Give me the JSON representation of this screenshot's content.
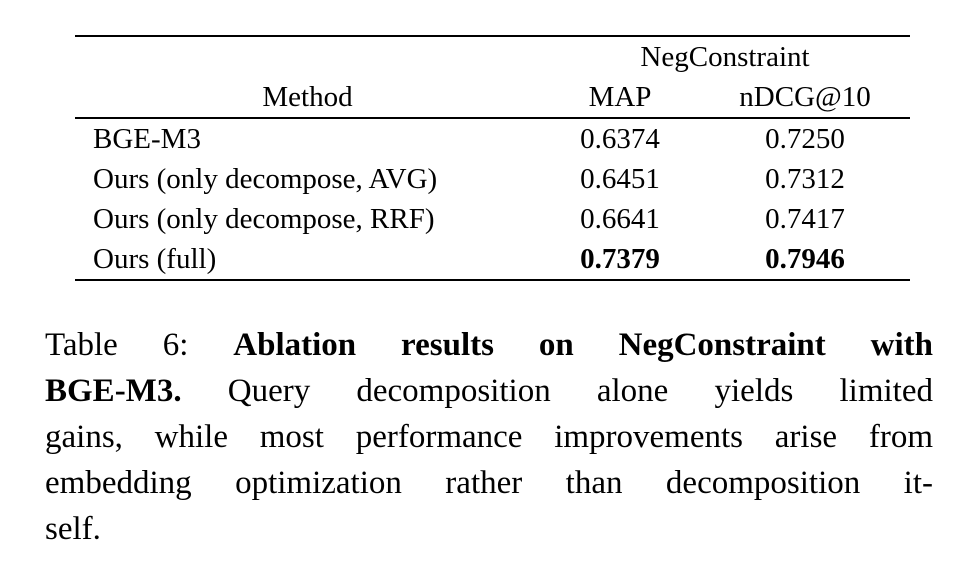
{
  "figure": {
    "table": {
      "group_header": "NegConstraint",
      "columns": [
        "Method",
        "MAP",
        "nDCG@10"
      ],
      "rows": [
        {
          "method": "BGE-M3",
          "map": "0.6374",
          "ndcg": "0.7250",
          "bold_values": false
        },
        {
          "method": "Ours (only decompose, AVG)",
          "map": "0.6451",
          "ndcg": "0.7312",
          "bold_values": false
        },
        {
          "method": "Ours (only decompose, RRF)",
          "map": "0.6641",
          "ndcg": "0.7417",
          "bold_values": false
        },
        {
          "method": "Ours (full)",
          "map": "0.7379",
          "ndcg": "0.7946",
          "bold_values": true
        }
      ]
    },
    "caption": {
      "lines": [
        {
          "segments": [
            {
              "t": "Table 6:",
              "bold": false
            },
            {
              "t": "Ablation results on NegConstraint with",
              "bold": true
            }
          ]
        },
        {
          "segments": [
            {
              "t": "BGE-M3.",
              "bold": true
            },
            {
              "t": "Query decomposition alone yields limited",
              "bold": false
            }
          ]
        },
        {
          "segments": [
            {
              "t": "gains, while most performance improvements arise from",
              "bold": false
            }
          ]
        },
        {
          "segments": [
            {
              "t": "embedding optimization rather than decomposition it-",
              "bold": false
            }
          ]
        },
        {
          "segments": [
            {
              "t": "self.",
              "bold": false
            }
          ]
        }
      ]
    }
  },
  "chart_data": {
    "type": "table",
    "title": "Table 6: Ablation results on NegConstraint with BGE-M3",
    "group_header": "NegConstraint",
    "columns": [
      "Method",
      "MAP",
      "nDCG@10"
    ],
    "rows": [
      [
        "BGE-M3",
        0.6374,
        0.725
      ],
      [
        "Ours (only decompose, AVG)",
        0.6451,
        0.7312
      ],
      [
        "Ours (only decompose, RRF)",
        0.6641,
        0.7417
      ],
      [
        "Ours (full)",
        0.7379,
        0.7946
      ]
    ],
    "best_row": "Ours (full)"
  },
  "colors": {
    "background": "#ffffff",
    "text": "#000000",
    "rule": "#000000"
  }
}
